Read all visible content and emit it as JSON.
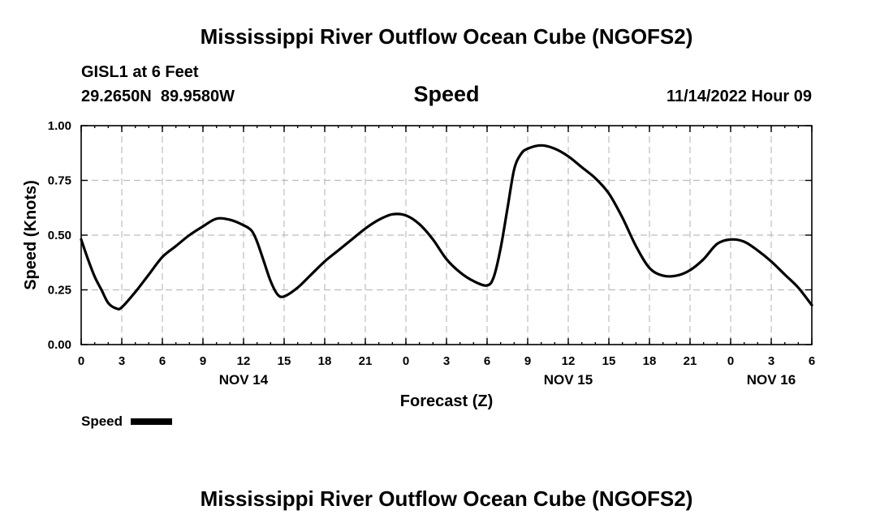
{
  "header": {
    "title": "Mississippi River Outflow Ocean Cube (NGOFS2)",
    "station": "GISL1 at 6 Feet",
    "coords": "29.2650N  89.9580W",
    "variable": "Speed",
    "datetime": "11/14/2022 Hour 09"
  },
  "footer": {
    "title": "Mississippi River Outflow Ocean Cube (NGOFS2)"
  },
  "legend": {
    "label": "Speed",
    "color": "#000000"
  },
  "chart_data": {
    "type": "line",
    "title": "Speed",
    "xlabel": "Forecast (Z)",
    "ylabel": "Speed (Knots)",
    "x_units": "hours from 11/14/2022 00Z",
    "xlim": [
      0,
      54
    ],
    "ylim": [
      0,
      1.0
    ],
    "yticks": [
      {
        "value": 0.0,
        "label": "0.00"
      },
      {
        "value": 0.25,
        "label": "0.25"
      },
      {
        "value": 0.5,
        "label": "0.50"
      },
      {
        "value": 0.75,
        "label": "0.75"
      },
      {
        "value": 1.0,
        "label": "1.00"
      }
    ],
    "xticks": [
      {
        "value": 0,
        "label": "0"
      },
      {
        "value": 3,
        "label": "3"
      },
      {
        "value": 6,
        "label": "6"
      },
      {
        "value": 9,
        "label": "9"
      },
      {
        "value": 12,
        "label": "12"
      },
      {
        "value": 15,
        "label": "15"
      },
      {
        "value": 18,
        "label": "18"
      },
      {
        "value": 21,
        "label": "21"
      },
      {
        "value": 24,
        "label": "0"
      },
      {
        "value": 27,
        "label": "3"
      },
      {
        "value": 30,
        "label": "6"
      },
      {
        "value": 33,
        "label": "9"
      },
      {
        "value": 36,
        "label": "12"
      },
      {
        "value": 39,
        "label": "15"
      },
      {
        "value": 42,
        "label": "18"
      },
      {
        "value": 45,
        "label": "21"
      },
      {
        "value": 48,
        "label": "0"
      },
      {
        "value": 51,
        "label": "3"
      },
      {
        "value": 54,
        "label": "6"
      }
    ],
    "day_labels": [
      {
        "value": 12,
        "label": "NOV 14"
      },
      {
        "value": 36,
        "label": "NOV 15"
      },
      {
        "value": 51,
        "label": "NOV 16"
      }
    ],
    "grid": true,
    "legend_position": "bottom-left",
    "series": [
      {
        "name": "Speed",
        "color": "#000000",
        "x": [
          0,
          0.5,
          1,
          1.5,
          2,
          2.6,
          3,
          4,
          5,
          6,
          7,
          8,
          9,
          10,
          11,
          12,
          12.6,
          13,
          13.5,
          14,
          14.5,
          15,
          16,
          17,
          18,
          19,
          20,
          21,
          22,
          23,
          24,
          25,
          26,
          27,
          28,
          29,
          30,
          30.5,
          31,
          31.5,
          32,
          32.5,
          33,
          34,
          35,
          36,
          37,
          38,
          39,
          40,
          41,
          42,
          43,
          44,
          45,
          46,
          47,
          48,
          49,
          50,
          51,
          52,
          53,
          54
        ],
        "y": [
          0.48,
          0.39,
          0.31,
          0.25,
          0.19,
          0.165,
          0.17,
          0.24,
          0.32,
          0.4,
          0.45,
          0.5,
          0.54,
          0.575,
          0.57,
          0.545,
          0.52,
          0.47,
          0.38,
          0.29,
          0.23,
          0.22,
          0.26,
          0.32,
          0.38,
          0.43,
          0.48,
          0.53,
          0.57,
          0.595,
          0.59,
          0.55,
          0.48,
          0.39,
          0.33,
          0.29,
          0.27,
          0.31,
          0.44,
          0.62,
          0.8,
          0.87,
          0.895,
          0.91,
          0.895,
          0.86,
          0.81,
          0.76,
          0.69,
          0.58,
          0.45,
          0.35,
          0.315,
          0.315,
          0.34,
          0.39,
          0.46,
          0.48,
          0.47,
          0.43,
          0.38,
          0.32,
          0.26,
          0.18
        ]
      }
    ]
  }
}
